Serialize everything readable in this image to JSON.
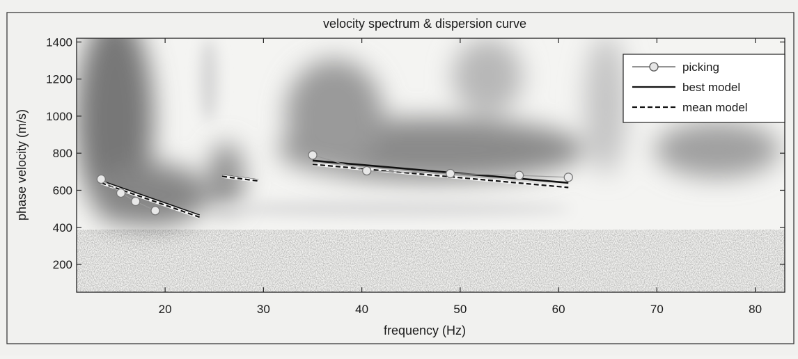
{
  "chart_data": {
    "type": "line",
    "title": "velocity spectrum & dispersion curve",
    "xlabel": "frequency (Hz)",
    "ylabel": "phase velocity (m/s)",
    "xlim": [
      11,
      83
    ],
    "ylim": [
      50,
      1420
    ],
    "xticks": [
      20,
      30,
      40,
      50,
      60,
      70,
      80
    ],
    "yticks": [
      200,
      400,
      600,
      800,
      1000,
      1200,
      1400
    ],
    "grid": false,
    "legend_position": "top-right",
    "background": "grayscale velocity spectrum image (dark = high energy)",
    "series": [
      {
        "name": "picking",
        "style": "line with circle markers",
        "x": [
          13.5,
          15.5,
          17,
          19,
          35,
          40.5,
          49,
          56,
          61
        ],
        "y": [
          660,
          585,
          540,
          490,
          790,
          705,
          690,
          680,
          670
        ]
      },
      {
        "name": "best model",
        "style": "solid",
        "segments": [
          {
            "x": [
              13.5,
              23.5
            ],
            "y": [
              650,
              465
            ]
          },
          {
            "x": [
              25.8,
              29.5
            ],
            "y": [
              680,
              655
            ]
          },
          {
            "x": [
              35,
              61
            ],
            "y": [
              760,
              640
            ]
          }
        ]
      },
      {
        "name": "mean model",
        "style": "dashed",
        "segments": [
          {
            "x": [
              13.5,
              23.5
            ],
            "y": [
              640,
              455
            ]
          },
          {
            "x": [
              25.8,
              29.5
            ],
            "y": [
              675,
              650
            ]
          },
          {
            "x": [
              35,
              61
            ],
            "y": [
              740,
              615
            ]
          }
        ]
      }
    ]
  }
}
